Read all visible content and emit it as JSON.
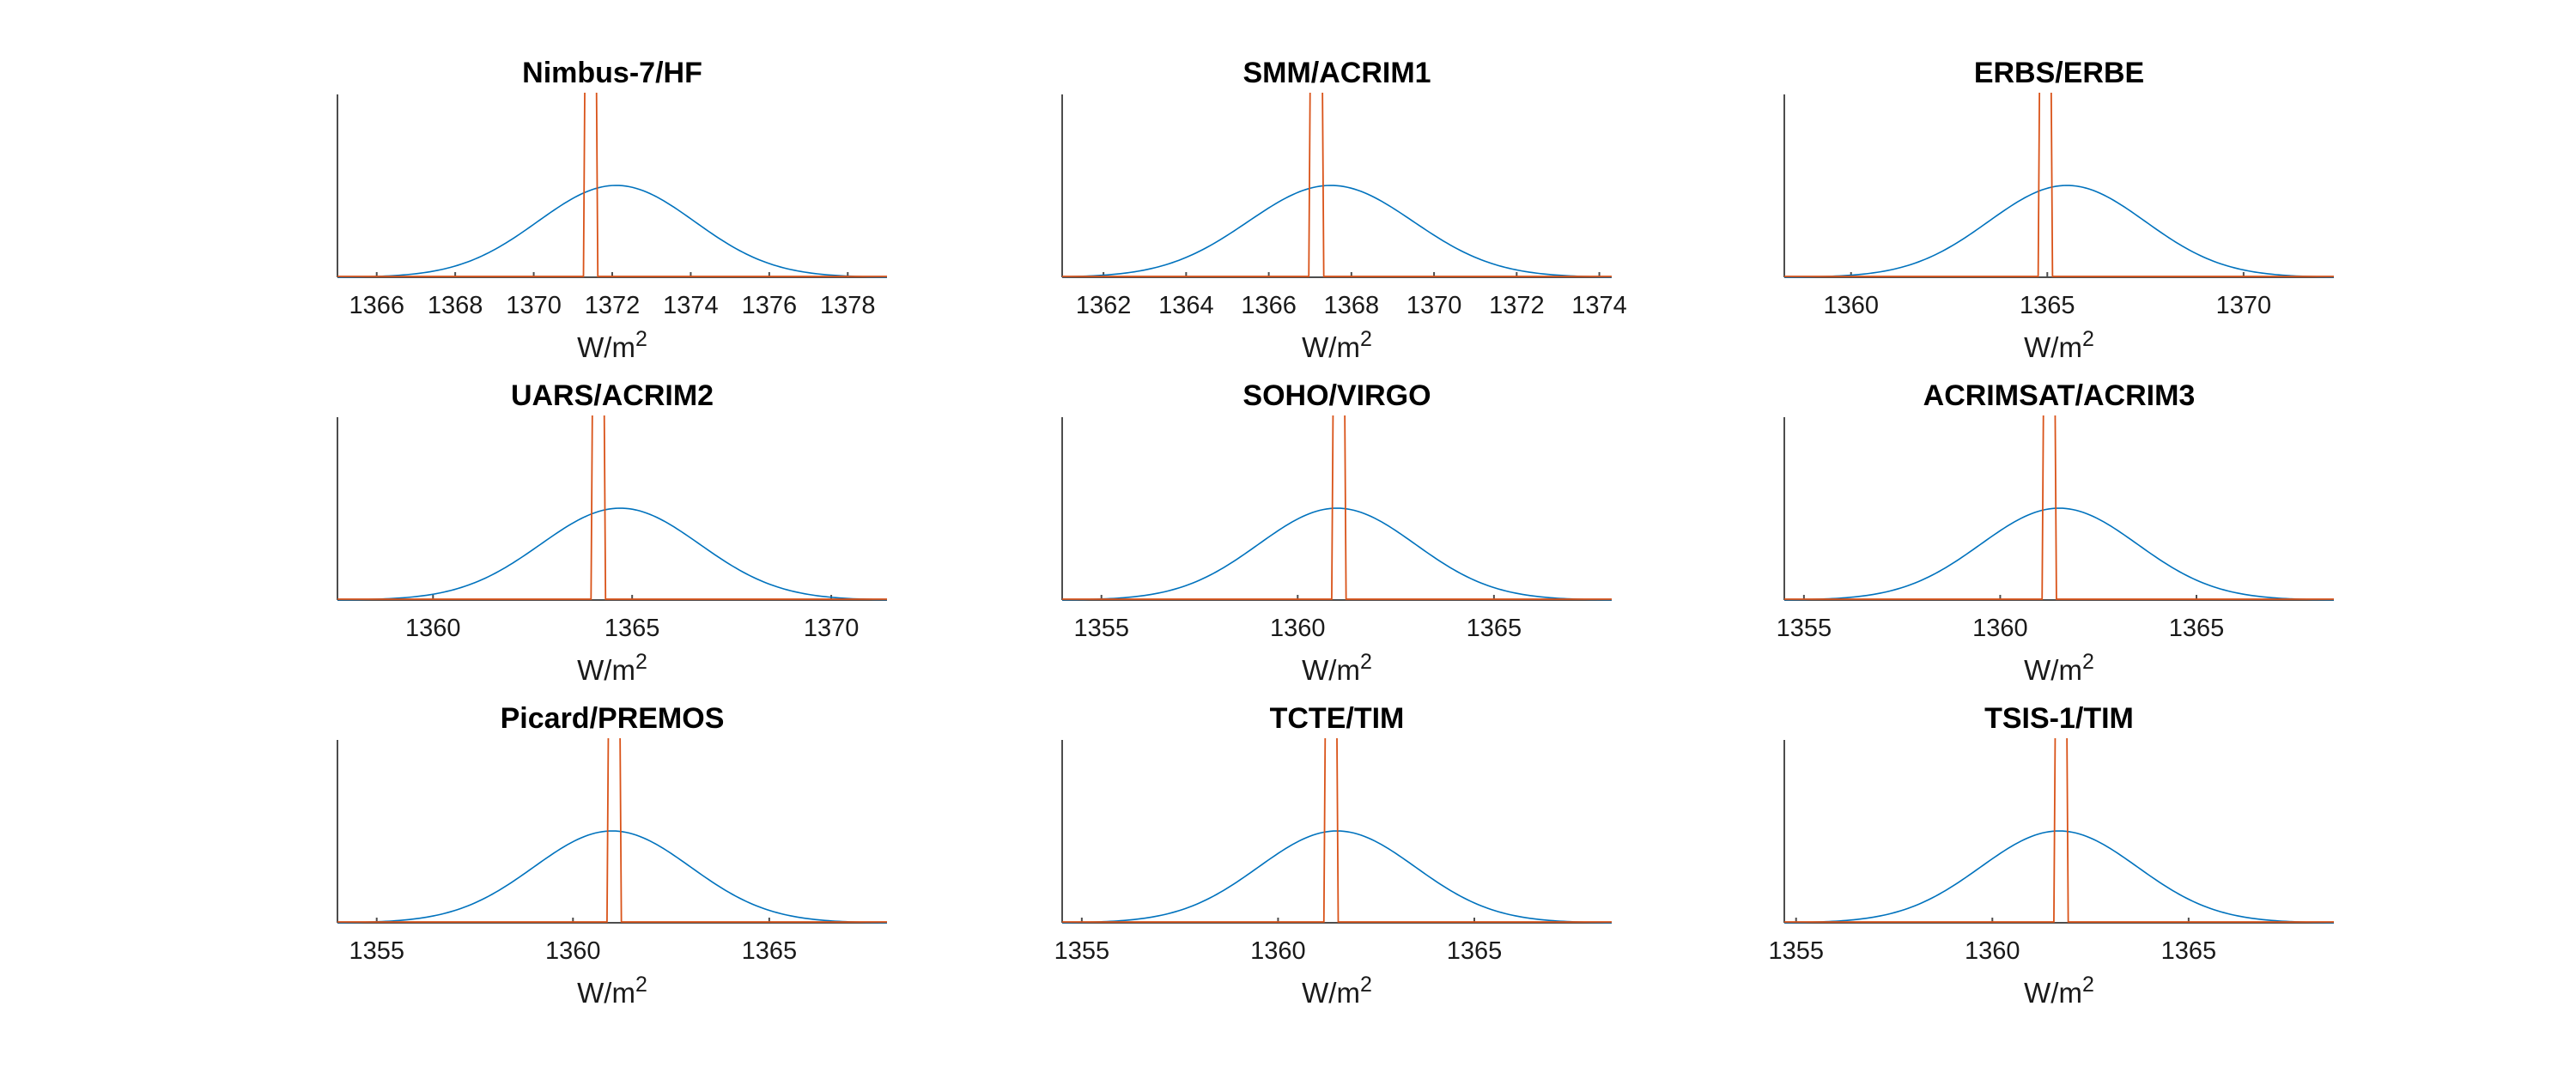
{
  "colors": {
    "prior": "#0072BD",
    "posterior": "#D95319",
    "axis": "#4d4d4d"
  },
  "chart_data": [
    {
      "type": "line",
      "title": "Nimbus-7/HF",
      "xlabel": "W/m2",
      "xlabel_base": "W/m",
      "xlabel_exp": "2",
      "xlim": [
        1365.0,
        1379.0
      ],
      "xticks": [
        1366,
        1368,
        1370,
        1372,
        1374,
        1376,
        1378
      ],
      "series": [
        {
          "kind": "wide",
          "mean": 1372.1,
          "sd": 2.0
        },
        {
          "kind": "narrow",
          "lo": 1371.3,
          "hi": 1371.6
        }
      ]
    },
    {
      "type": "line",
      "title": "SMM/ACRIM1",
      "xlabel": "W/m2",
      "xlabel_base": "W/m",
      "xlabel_exp": "2",
      "xlim": [
        1361.0,
        1374.3
      ],
      "xticks": [
        1362,
        1364,
        1366,
        1368,
        1370,
        1372,
        1374
      ],
      "series": [
        {
          "kind": "wide",
          "mean": 1367.5,
          "sd": 2.0
        },
        {
          "kind": "narrow",
          "lo": 1367.0,
          "hi": 1367.3
        }
      ]
    },
    {
      "type": "line",
      "title": "ERBS/ERBE",
      "xlabel": "W/m2",
      "xlabel_base": "W/m",
      "xlabel_exp": "2",
      "xlim": [
        1358.3,
        1372.3
      ],
      "xticks": [
        1360,
        1365,
        1370
      ],
      "series": [
        {
          "kind": "wide",
          "mean": 1365.5,
          "sd": 2.0
        },
        {
          "kind": "narrow",
          "lo": 1364.8,
          "hi": 1365.1
        }
      ]
    },
    {
      "type": "line",
      "title": "UARS/ACRIM2",
      "xlabel": "W/m2",
      "xlabel_base": "W/m",
      "xlabel_exp": "2",
      "xlim": [
        1357.6,
        1371.4
      ],
      "xticks": [
        1360,
        1365,
        1370
      ],
      "series": [
        {
          "kind": "wide",
          "mean": 1364.7,
          "sd": 2.0
        },
        {
          "kind": "narrow",
          "lo": 1364.0,
          "hi": 1364.3
        }
      ]
    },
    {
      "type": "line",
      "title": "SOHO/VIRGO",
      "xlabel": "W/m2",
      "xlabel_base": "W/m",
      "xlabel_exp": "2",
      "xlim": [
        1354.0,
        1368.0
      ],
      "xticks": [
        1355,
        1360,
        1365
      ],
      "series": [
        {
          "kind": "wide",
          "mean": 1361.0,
          "sd": 2.0
        },
        {
          "kind": "narrow",
          "lo": 1360.9,
          "hi": 1361.2
        }
      ]
    },
    {
      "type": "line",
      "title": "ACRIMSAT/ACRIM3",
      "xlabel": "W/m2",
      "xlabel_base": "W/m",
      "xlabel_exp": "2",
      "xlim": [
        1354.5,
        1368.5
      ],
      "xticks": [
        1355,
        1360,
        1365
      ],
      "series": [
        {
          "kind": "wide",
          "mean": 1361.5,
          "sd": 2.0
        },
        {
          "kind": "narrow",
          "lo": 1361.1,
          "hi": 1361.4
        }
      ]
    },
    {
      "type": "line",
      "title": "Picard/PREMOS",
      "xlabel": "W/m2",
      "xlabel_base": "W/m",
      "xlabel_exp": "2",
      "xlim": [
        1354.0,
        1368.0
      ],
      "xticks": [
        1355,
        1360,
        1365
      ],
      "series": [
        {
          "kind": "wide",
          "mean": 1361.0,
          "sd": 2.0
        },
        {
          "kind": "narrow",
          "lo": 1360.9,
          "hi": 1361.2
        }
      ]
    },
    {
      "type": "line",
      "title": "TCTE/TIM",
      "xlabel": "W/m2",
      "xlabel_base": "W/m",
      "xlabel_exp": "2",
      "xlim": [
        1354.5,
        1368.5
      ],
      "xticks": [
        1355,
        1360,
        1365
      ],
      "series": [
        {
          "kind": "wide",
          "mean": 1361.5,
          "sd": 2.0
        },
        {
          "kind": "narrow",
          "lo": 1361.2,
          "hi": 1361.5
        }
      ]
    },
    {
      "type": "line",
      "title": "TSIS-1/TIM",
      "xlabel": "W/m2",
      "xlabel_base": "W/m",
      "xlabel_exp": "2",
      "xlim": [
        1354.7,
        1368.7
      ],
      "xticks": [
        1355,
        1360,
        1365
      ],
      "series": [
        {
          "kind": "wide",
          "mean": 1361.7,
          "sd": 2.0
        },
        {
          "kind": "narrow",
          "lo": 1361.6,
          "hi": 1361.9
        }
      ]
    }
  ]
}
